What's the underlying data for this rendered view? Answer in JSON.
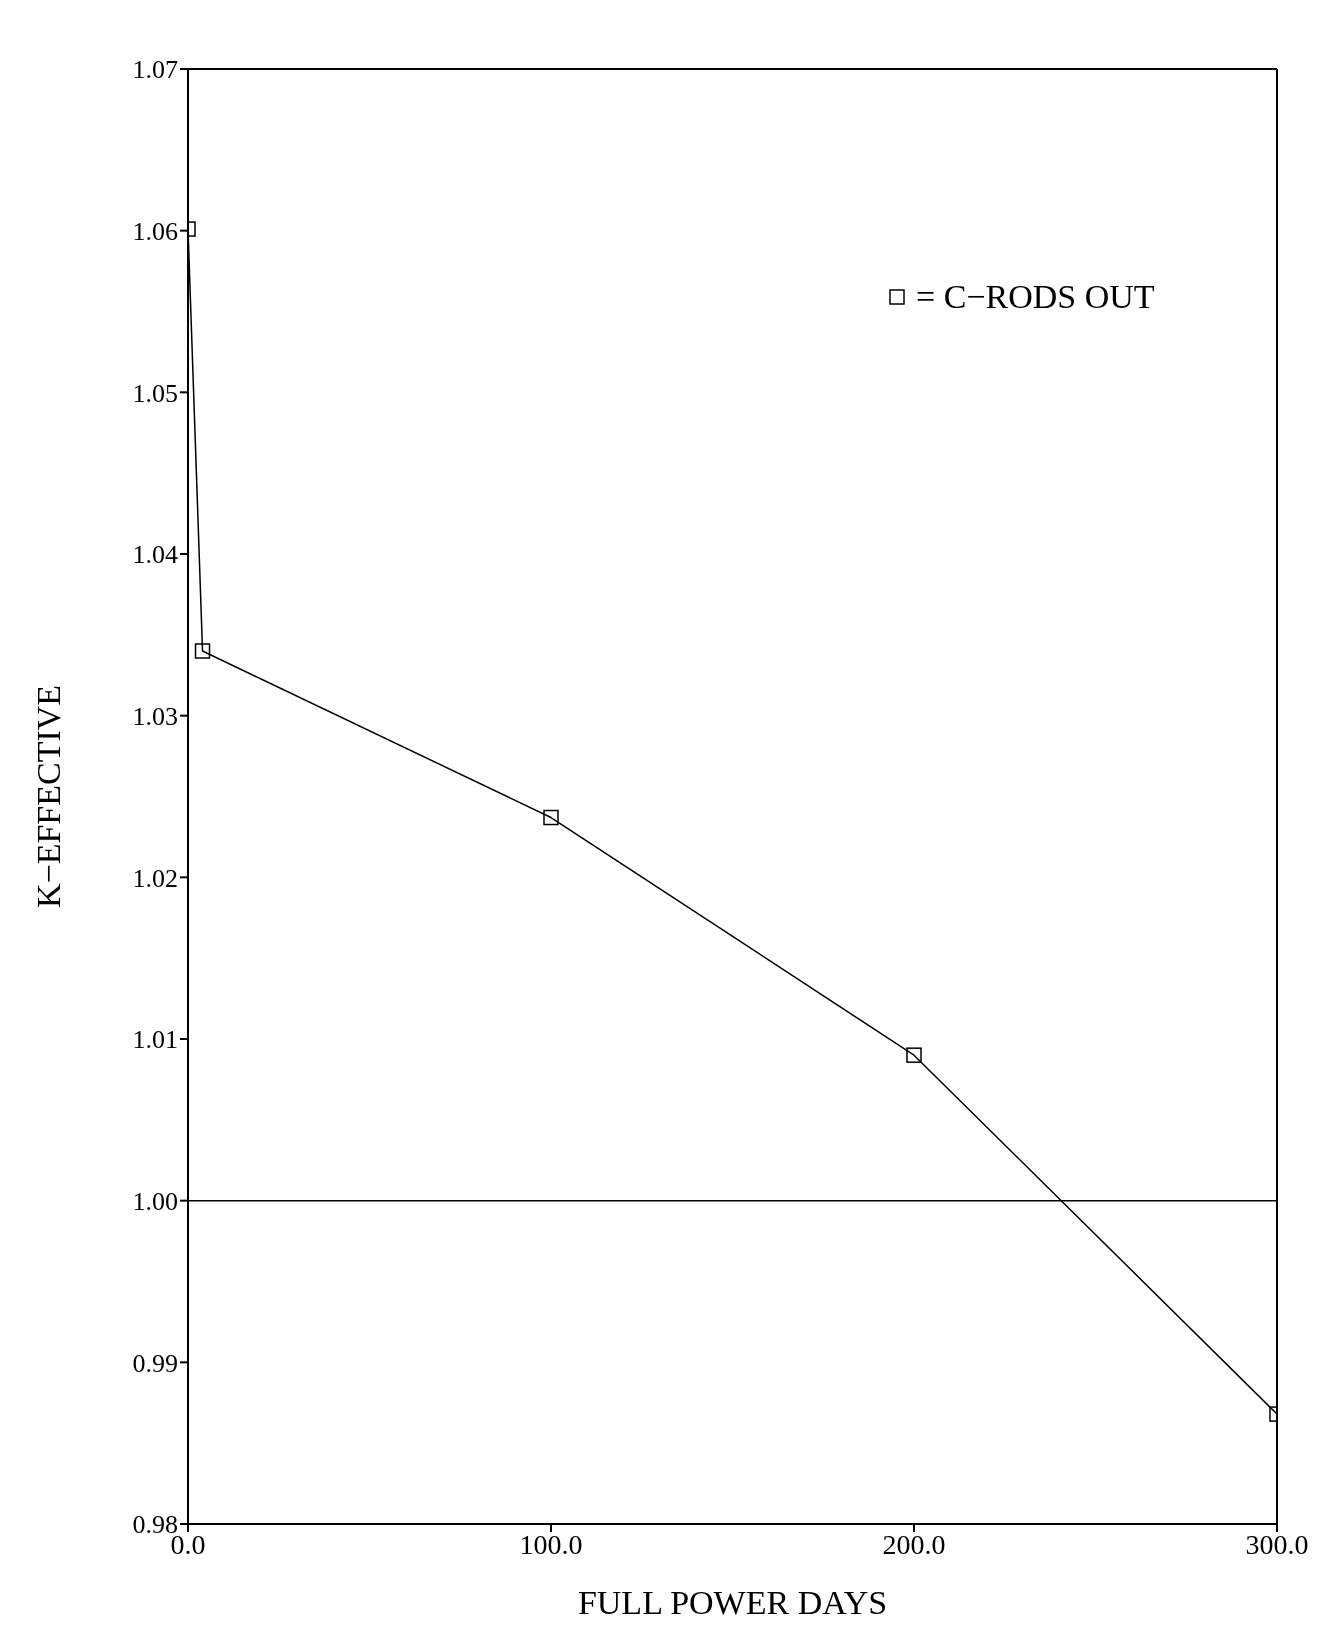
{
  "chart_data": {
    "type": "line",
    "xlabel": "FULL POWER DAYS",
    "ylabel": "K−EFFECTIVE",
    "x": [
      0,
      4,
      100,
      200,
      300
    ],
    "series": [
      {
        "name": "= C−RODS OUT",
        "color": "#000000",
        "values": [
          1.0601,
          1.034,
          1.0237,
          1.009,
          0.9868
        ]
      }
    ],
    "xlim": [
      0,
      300
    ],
    "xticks": [
      {
        "value": 0,
        "label": "0.0"
      },
      {
        "value": 100,
        "label": "100.0"
      },
      {
        "value": 200,
        "label": "200.0"
      },
      {
        "value": 300,
        "label": "300.0"
      }
    ],
    "ylim": [
      0.98,
      1.07
    ],
    "yticks": [
      0.98,
      0.99,
      {
        "value": 1.0,
        "label": "1.00"
      },
      1.01,
      1.02,
      1.03,
      1.04,
      1.05,
      1.06,
      1.07
    ],
    "ref_lines": [
      {
        "axis": "y",
        "value": 1.0,
        "color": "#000000"
      }
    ],
    "marker": "square",
    "grid": false,
    "legend": "top right"
  }
}
